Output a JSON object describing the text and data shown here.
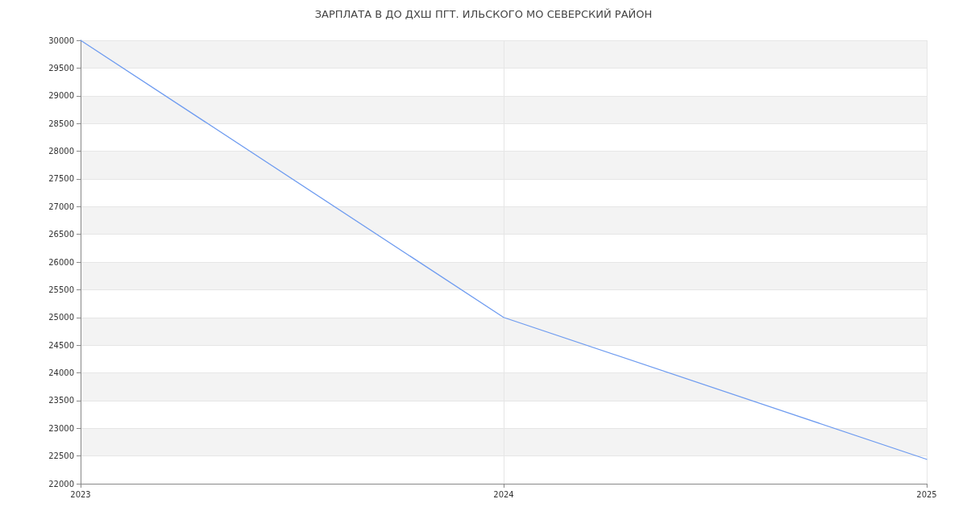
{
  "chart_data": {
    "type": "line",
    "title": "ЗАРПЛАТА В ДО ДХШ ПГТ. ИЛЬСКОГО МО СЕВЕРСКИЙ РАЙОН",
    "categories": [
      "2023",
      "2024",
      "2025"
    ],
    "series": [
      {
        "color": "#6f9cf0",
        "values": [
          30000,
          25000,
          22440
        ]
      }
    ],
    "ylim": [
      22000,
      30000
    ],
    "yticks": [
      22000,
      22500,
      23000,
      23500,
      24000,
      24500,
      25000,
      25500,
      26000,
      26500,
      27000,
      27500,
      28000,
      28500,
      29000,
      29500,
      30000
    ],
    "grid": true,
    "marker": "none",
    "line_style": "solid"
  }
}
